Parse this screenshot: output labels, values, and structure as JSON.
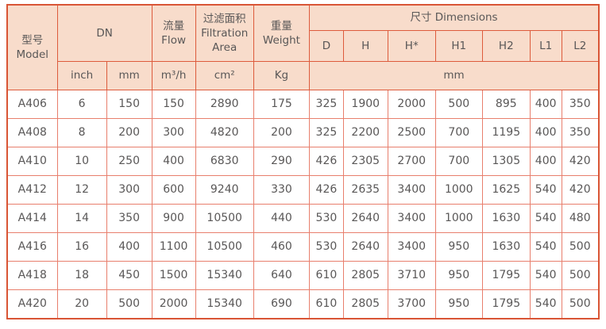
{
  "colors": {
    "header_bg": "#f8dccb",
    "border": "#dd5b3c",
    "border_light": "#e87f6d",
    "text": "#595757"
  },
  "table": {
    "header": {
      "model": "型号\nModel",
      "dn": "DN",
      "flow": "流量\nFlow",
      "filtration_area": "过滤面积\nFiltration\nArea",
      "weight": "重量\nWeight",
      "dimensions": "尺寸 Dimensions",
      "dimension_columns": [
        "D",
        "H",
        "H*",
        "H1",
        "H2",
        "L1",
        "L2"
      ],
      "units": {
        "dn_inch": "inch",
        "dn_mm": "mm",
        "flow": "m³/h",
        "filtration_area": "cm²",
        "weight": "Kg",
        "dimensions": "mm"
      }
    },
    "rows": [
      {
        "model": "A406",
        "values": [
          "6",
          "150",
          "150",
          "2890",
          "175",
          "325",
          "1900",
          "2000",
          "500",
          "895",
          "400",
          "350"
        ]
      },
      {
        "model": "A408",
        "values": [
          "8",
          "200",
          "300",
          "4820",
          "200",
          "325",
          "2200",
          "2500",
          "700",
          "1195",
          "400",
          "350"
        ]
      },
      {
        "model": "A410",
        "values": [
          "10",
          "250",
          "400",
          "6830",
          "290",
          "426",
          "2305",
          "2700",
          "700",
          "1305",
          "400",
          "420"
        ]
      },
      {
        "model": "A412",
        "values": [
          "12",
          "300",
          "600",
          "9240",
          "330",
          "426",
          "2635",
          "3400",
          "1000",
          "1625",
          "540",
          "420"
        ]
      },
      {
        "model": "A414",
        "values": [
          "14",
          "350",
          "900",
          "10500",
          "440",
          "530",
          "2640",
          "3400",
          "1000",
          "1630",
          "540",
          "480"
        ]
      },
      {
        "model": "A416",
        "values": [
          "16",
          "400",
          "1100",
          "10500",
          "460",
          "530",
          "2640",
          "3400",
          "950",
          "1630",
          "540",
          "500"
        ]
      },
      {
        "model": "A418",
        "values": [
          "18",
          "450",
          "1500",
          "15340",
          "640",
          "610",
          "2805",
          "3710",
          "950",
          "1795",
          "540",
          "500"
        ]
      },
      {
        "model": "A420",
        "values": [
          "20",
          "500",
          "2000",
          "15340",
          "690",
          "610",
          "2805",
          "3700",
          "950",
          "1795",
          "540",
          "500"
        ]
      }
    ]
  }
}
